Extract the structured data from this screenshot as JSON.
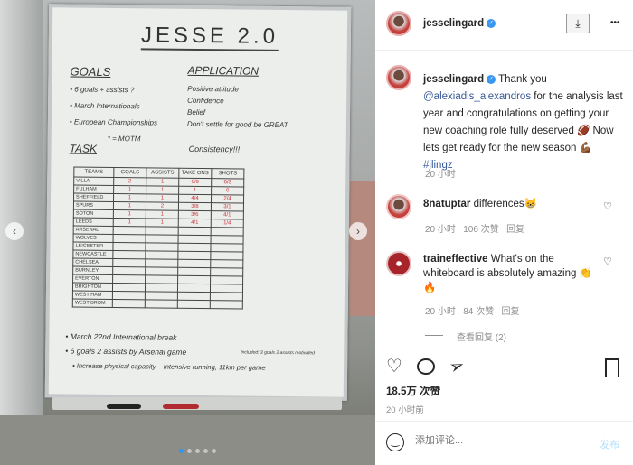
{
  "post_image": {
    "board": {
      "title": "JESSE 2.0",
      "goals_heading": "GOALS",
      "goals": [
        "• 6 goals + assists ?",
        "• March Internationals",
        "• European Championships"
      ],
      "application_heading": "APPLICATION",
      "application": [
        "Positive attitude",
        "Confidence",
        "Belief",
        "Don't settle for good be GREAT"
      ],
      "task_heading": "TASK",
      "task_note": "* = MOTM",
      "consistency": "Consistency!!!",
      "table": {
        "headers": [
          "TEAMS",
          "GOALS",
          "ASSISTS",
          "TAKE ONS",
          "SHOTS"
        ],
        "rows": [
          [
            "VILLA",
            "2",
            "1",
            "6/9",
            "6/3"
          ],
          [
            "FULHAM",
            "1",
            "1",
            "1",
            "0"
          ],
          [
            "SHEFFIELD",
            "1",
            "1",
            "4/4",
            "2/4"
          ],
          [
            "SPURS",
            "1",
            "2",
            "3/8",
            "3/1"
          ],
          [
            "SOTON",
            "1",
            "1",
            "3/6",
            "4/1"
          ],
          [
            "LEEDS",
            "1",
            "1",
            "4/1",
            "1/4"
          ],
          [
            "ARSENAL",
            "",
            "",
            "",
            ""
          ],
          [
            "WOLVES",
            "",
            "",
            "",
            ""
          ],
          [
            "LEICESTER",
            "",
            "",
            "",
            ""
          ],
          [
            "NEWCASTLE",
            "",
            "",
            "",
            ""
          ],
          [
            "CHELSEA",
            "",
            "",
            "",
            ""
          ],
          [
            "BURNLEY",
            "",
            "",
            "",
            ""
          ],
          [
            "EVERTON",
            "",
            "",
            "",
            ""
          ],
          [
            "BRIGHTON",
            "",
            "",
            "",
            ""
          ],
          [
            "WEST HAM",
            "",
            "",
            "",
            ""
          ],
          [
            "WEST BROM",
            "",
            "",
            "",
            ""
          ]
        ]
      },
      "notes": [
        "• March 22nd International break",
        "• 6 goals 2 assists by Arsenal game",
        "• Increase physical capacity – Intensive running, 11km per game"
      ],
      "side_note": "Included: 3 goals 2 assists motivated"
    },
    "prev_label": "‹",
    "next_label": "›",
    "carousel_dots": 5,
    "active_dot": 0
  },
  "header": {
    "username": "jesselingard",
    "verified": true,
    "download_icon": "download-icon",
    "more_label": "•••"
  },
  "caption": {
    "username": "jesselingard",
    "text_before": "Thank you ",
    "mention": "@alexiadis_alexandros",
    "text_after": " for the analysis last year and congratulations on getting your new coaching role fully deserved 🏈 Now lets get ready for the new season 💪🏾 ",
    "hashtag": "#jlingz",
    "time": "20 小时"
  },
  "comments": [
    {
      "username": "8natuptar",
      "text": "differences😸",
      "time": "20 小时",
      "likes": "106 次赞",
      "reply": "回复"
    },
    {
      "username": "traineffective",
      "text": "What's on the whiteboard is absolutely amazing 👏🔥",
      "time": "20 小时",
      "likes": "84 次赞",
      "reply": "回复",
      "view_replies": "查看回复 (2)"
    }
  ],
  "actions": {
    "likes": "18.5万 次赞",
    "time": "20 小时前"
  },
  "add_comment": {
    "placeholder": "添加评论...",
    "post_label": "发布"
  },
  "colors": {
    "link": "#385898",
    "verified": "#3897f0",
    "muted": "#8e8e8e",
    "post_button": "#b2dffc",
    "marker_red": "#c8343b"
  }
}
